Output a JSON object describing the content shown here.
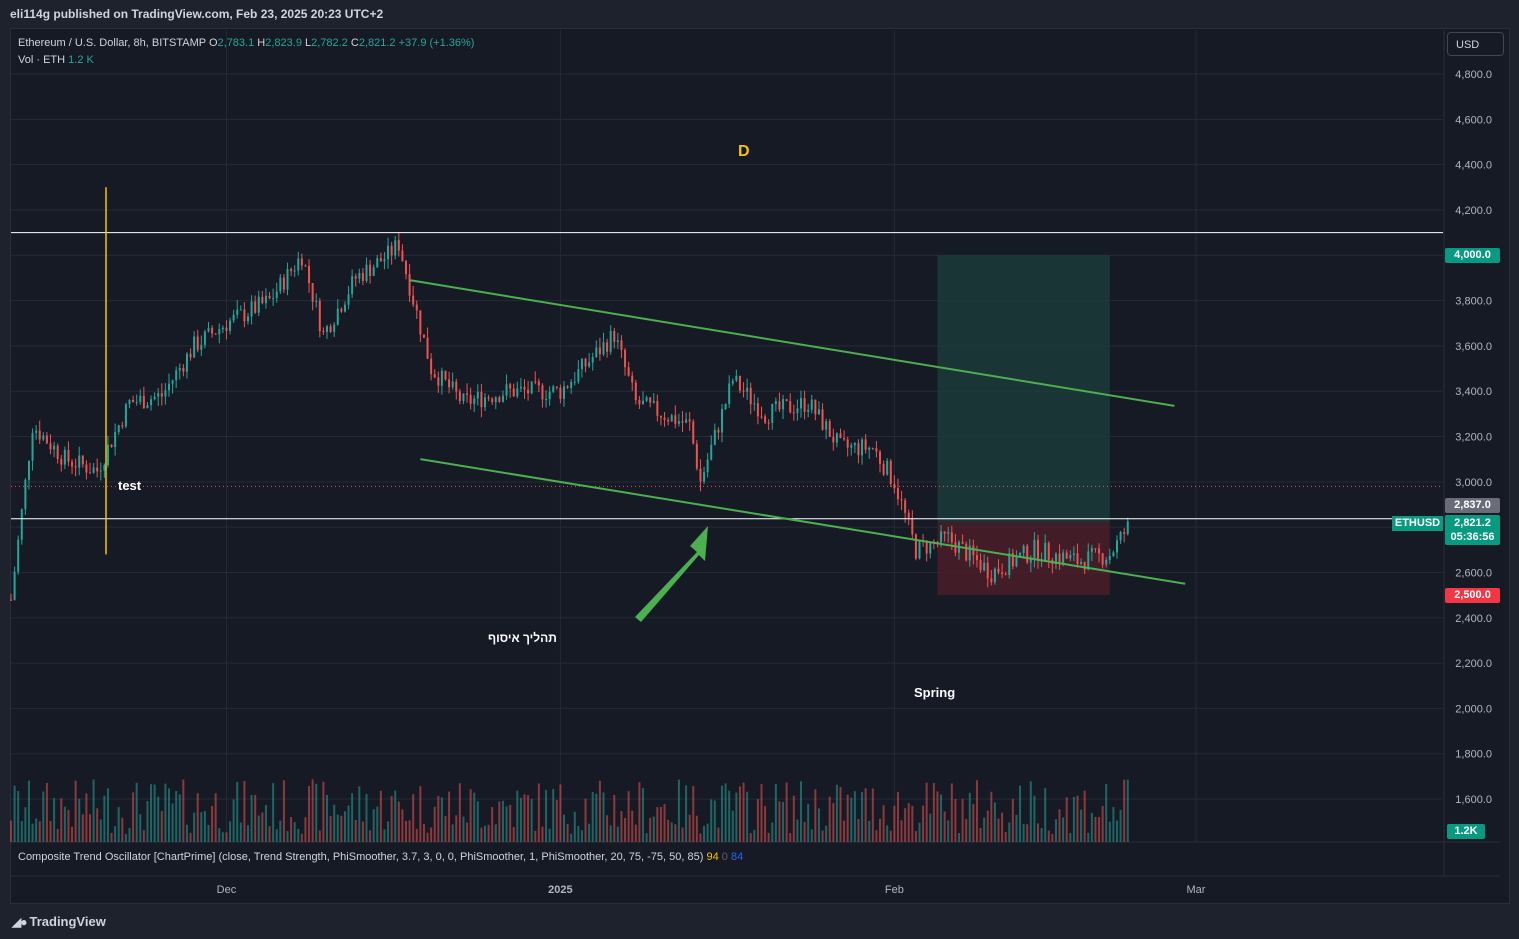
{
  "header": {
    "publish_line": "eli114g published on TradingView.com, Feb 23, 2025 20:23 UTC+2"
  },
  "legend": {
    "symbol_line": "Ethereum / U.S. Dollar, 8h, BITSTAMP",
    "open_label": "O",
    "open": "2,783.1",
    "high_label": "H",
    "high": "2,823.9",
    "low_label": "L",
    "low": "2,782.2",
    "close_label": "C",
    "close": "2,821.2",
    "change": "+37.9 (+1.36%)",
    "vol_label": "Vol · ETH",
    "vol": "1.2 K"
  },
  "currency_button": "USD",
  "oscillator": {
    "label": "Composite Trend Oscillator [ChartPrime] (close, Trend Strength, PhiSmoother, 3.7, 3, 0, 0, PhiSmoother, 1, PhiSmoother, 20, 75, -75, 50, 85)",
    "v1": "94",
    "v2": "0",
    "v3": "84"
  },
  "annotations": {
    "d_label": "D",
    "test_label": "test",
    "spring_label": "Spring",
    "hebrew_label": "תהליך איסוף"
  },
  "price_tags": {
    "target": "4,000.0",
    "stop": "2,500.0",
    "line_level": "2,837.0",
    "last_price": "2,821.2",
    "countdown": "05:36:56",
    "symbol": "ETHUSD",
    "volume": "1.2K"
  },
  "branding": {
    "logo_text": "TradingView"
  },
  "colors": {
    "up": "#26a69a",
    "down": "#ef5350",
    "trendline": "#4caf50",
    "target_zone": "#1b3b39",
    "stop_zone": "#4a1f29",
    "vertical_marker": "#f9c20a"
  },
  "chart_data": {
    "type": "candlestick",
    "symbol": "ETHUSD",
    "timeframe": "8h",
    "exchange": "BITSTAMP",
    "y_ticks": [
      4800,
      4600,
      4400,
      4200,
      4000,
      3800,
      3600,
      3400,
      3200,
      3000,
      2800,
      2600,
      2400,
      2200,
      2000,
      1800,
      1600
    ],
    "y_tick_labels": [
      "4,800.0",
      "4,600.0",
      "4,400.0",
      "4,200.0",
      "4,000.0",
      "3,800.0",
      "3,600.0",
      "3,400.0",
      "3,200.0",
      "3,000.0",
      "2,800.0",
      "2,600.0",
      "2,400.0",
      "2,200.0",
      "2,000.0",
      "1,800.0",
      "1,600.0"
    ],
    "x_labels": [
      "Dec",
      "2025",
      "Feb",
      "Mar"
    ],
    "approx_close_path": [
      [
        "2024-11-11",
        2480
      ],
      [
        "2024-11-13",
        3250
      ],
      [
        "2024-11-16",
        3100
      ],
      [
        "2024-11-19",
        3050
      ],
      [
        "2024-11-22",
        3350
      ],
      [
        "2024-11-25",
        3380
      ],
      [
        "2024-11-28",
        3600
      ],
      [
        "2024-12-01",
        3700
      ],
      [
        "2024-12-05",
        3800
      ],
      [
        "2024-12-08",
        4000
      ],
      [
        "2024-12-10",
        3650
      ],
      [
        "2024-12-13",
        3900
      ],
      [
        "2024-12-16",
        4000
      ],
      [
        "2024-12-17",
        4050
      ],
      [
        "2024-12-20",
        3500
      ],
      [
        "2024-12-23",
        3350
      ],
      [
        "2024-12-27",
        3400
      ],
      [
        "2025-01-01",
        3400
      ],
      [
        "2025-01-06",
        3650
      ],
      [
        "2025-01-08",
        3350
      ],
      [
        "2025-01-13",
        3250
      ],
      [
        "2025-01-14",
        3000
      ],
      [
        "2025-01-17",
        3450
      ],
      [
        "2025-01-20",
        3300
      ],
      [
        "2025-01-24",
        3350
      ],
      [
        "2025-01-27",
        3150
      ],
      [
        "2025-01-30",
        3150
      ],
      [
        "2025-02-01",
        3000
      ],
      [
        "2025-02-03",
        2700
      ],
      [
        "2025-02-06",
        2750
      ],
      [
        "2025-02-10",
        2600
      ],
      [
        "2025-02-14",
        2700
      ],
      [
        "2025-02-18",
        2650
      ],
      [
        "2025-02-21",
        2680
      ],
      [
        "2025-02-23",
        2821.2
      ]
    ],
    "horizontal_levels": [
      4100,
      2837.0,
      2980
    ],
    "channel_upper": [
      [
        "2024-12-18",
        3890
      ],
      [
        "2025-02-27",
        3335
      ]
    ],
    "channel_lower": [
      [
        "2024-12-19",
        3100
      ],
      [
        "2025-02-28",
        2550
      ]
    ],
    "position": {
      "entry": 2821.2,
      "target": 4000.0,
      "stop": 2500.0
    },
    "annotations": [
      "D",
      "test",
      "Spring",
      "תהליך איסוף"
    ]
  }
}
